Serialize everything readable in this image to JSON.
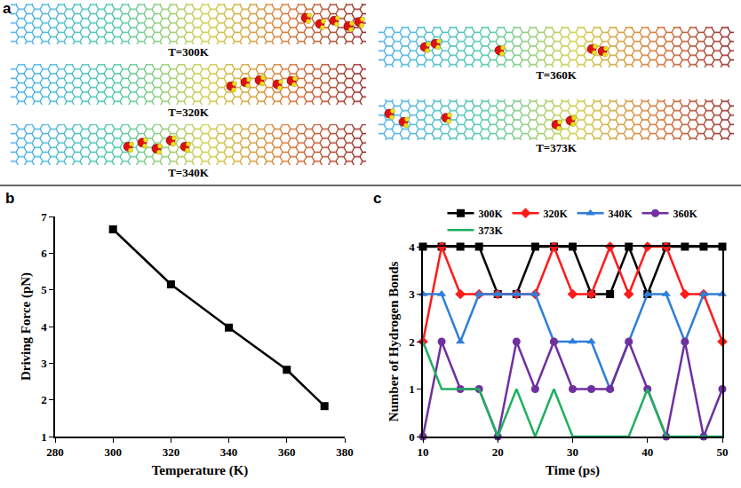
{
  "diagram": {
    "title": "a",
    "snapshots": [
      "T=300K",
      "T=320K",
      "T=340K",
      "T=360K",
      "T=373K"
    ]
  },
  "chart_data": [
    {
      "type": "line",
      "title": "b",
      "x_label": "Temperature (K)",
      "y_label": "Driving Force (pN)",
      "x": [
        300,
        320,
        340,
        360,
        373
      ],
      "series": [
        {
          "name": "Driving Force",
          "color": "#000000",
          "marker": "square",
          "values": [
            6.65,
            5.15,
            3.97,
            2.82,
            1.83
          ]
        }
      ],
      "xlim": [
        280,
        380
      ],
      "xticks": [
        280,
        300,
        320,
        340,
        360,
        380
      ],
      "ylim": [
        1,
        7
      ],
      "yticks": [
        1,
        2,
        3,
        4,
        5,
        6,
        7
      ],
      "grid": false
    },
    {
      "type": "line",
      "title": "c",
      "x_label": "Time (ps)",
      "y_label": "Number of Hydrogen Bonds",
      "x": [
        10,
        12.5,
        15,
        17.5,
        20,
        22.5,
        25,
        27.5,
        30,
        32.5,
        35,
        37.5,
        40,
        42.5,
        45,
        47.5,
        50
      ],
      "series": [
        {
          "name": "300K",
          "color": "#000000",
          "marker": "square",
          "values": [
            4,
            4,
            4,
            4,
            3,
            3,
            4,
            4,
            4,
            3,
            3,
            4,
            3,
            4,
            4,
            4,
            4
          ]
        },
        {
          "name": "320K",
          "color": "#ff1a1a",
          "marker": "diamond",
          "values": [
            2,
            4,
            3,
            3,
            3,
            3,
            3,
            4,
            3,
            3,
            4,
            3,
            4,
            4,
            3,
            3,
            2
          ]
        },
        {
          "name": "340K",
          "color": "#2f7fd8",
          "marker": "triangle",
          "values": [
            3,
            3,
            2,
            3,
            3,
            3,
            3,
            2,
            2,
            2,
            1,
            2,
            3,
            3,
            2,
            3,
            3
          ]
        },
        {
          "name": "360K",
          "color": "#7030a0",
          "marker": "circle",
          "values": [
            0,
            2,
            1,
            1,
            0,
            2,
            1,
            2,
            1,
            1,
            1,
            2,
            1,
            0,
            2,
            0,
            1
          ]
        },
        {
          "name": "373K",
          "color": "#1fb060",
          "marker": "none",
          "values": [
            2,
            1,
            1,
            1,
            0,
            1,
            0,
            1,
            0,
            0,
            0,
            0,
            1,
            0,
            0,
            0,
            0
          ]
        }
      ],
      "xlim": [
        10,
        50
      ],
      "xticks": [
        10,
        20,
        30,
        40,
        50
      ],
      "ylim": [
        0,
        4
      ],
      "yticks": [
        0,
        1,
        2,
        3,
        4
      ],
      "grid": false,
      "legend": "top"
    }
  ]
}
